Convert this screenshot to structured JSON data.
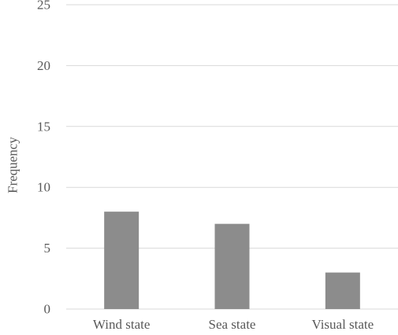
{
  "chart_data": {
    "type": "bar",
    "categories": [
      "Wind state",
      "Sea state",
      "Visual state"
    ],
    "values": [
      8,
      7,
      3
    ],
    "title": "",
    "xlabel": "",
    "ylabel": "Frequency",
    "ylim": [
      0,
      25
    ],
    "yticks": [
      0,
      5,
      10,
      15,
      20,
      25
    ],
    "grid": true,
    "legend": "none",
    "bar_color": "#8c8c8c",
    "grid_color": "#d9d9d9"
  }
}
